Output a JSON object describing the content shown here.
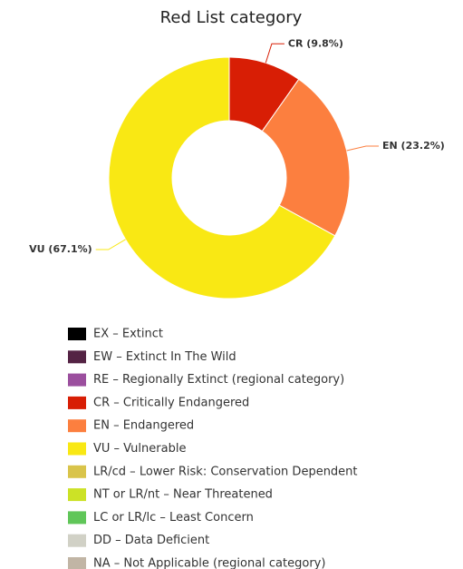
{
  "chart_data": {
    "type": "donut",
    "title": "Red List category",
    "values": [
      9.8,
      23.2,
      67.1
    ],
    "value_labels": [
      "CR (9.8%)",
      "EN (23.2%)",
      "VU (67.1%)"
    ],
    "colors": [
      "#d81e05",
      "#fc7f3f",
      "#f9e814"
    ],
    "legend": [
      {
        "label": "EX – Extinct",
        "color": "#000000"
      },
      {
        "label": "EW – Extinct In The Wild",
        "color": "#542344"
      },
      {
        "label": "RE – Regionally Extinct (regional category)",
        "color": "#9b4f9e"
      },
      {
        "label": "CR – Critically Endangered",
        "color": "#d81e05"
      },
      {
        "label": "EN – Endangered",
        "color": "#fc7f3f"
      },
      {
        "label": "VU – Vulnerable",
        "color": "#f9e814"
      },
      {
        "label": "LR/cd – Lower Risk: Conservation Dependent",
        "color": "#d9c44a"
      },
      {
        "label": "NT or LR/nt – Near Threatened",
        "color": "#cce226"
      },
      {
        "label": "LC or LR/lc – Least Concern",
        "color": "#60c659"
      },
      {
        "label": "DD – Data Deficient",
        "color": "#d1d1c6"
      },
      {
        "label": "NA – Not Applicable (regional category)",
        "color": "#c1b5a5"
      }
    ]
  }
}
